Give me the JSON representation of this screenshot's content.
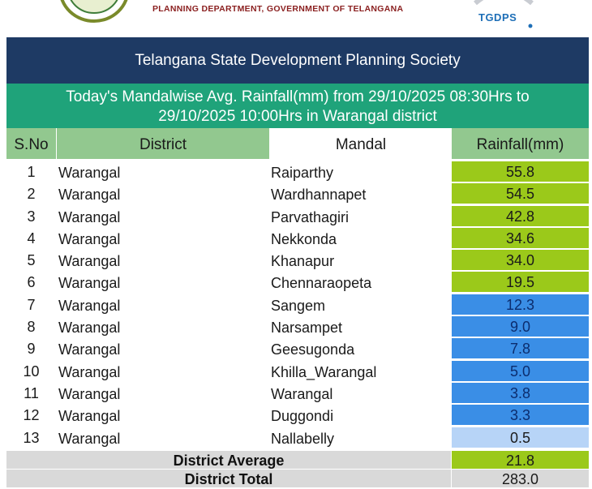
{
  "header": {
    "department": "PLANNING DEPARTMENT, GOVERNMENT OF TELANGANA",
    "logo_text": "TGDPS"
  },
  "title": "Telangana State Development Planning Society",
  "subtitle_line1": "Today's Mandalwise Avg. Rainfall(mm) from 29/10/2025 08:30Hrs to",
  "subtitle_line2": "29/10/2025 10:00Hrs in Warangal district",
  "columns": {
    "sno": "S.No",
    "district": "District",
    "mandal": "Mandal",
    "rainfall": "Rainfall(mm)"
  },
  "rows": [
    {
      "sno": "1",
      "district": "Warangal",
      "mandal": "Raiparthy",
      "rainfall": "55.8"
    },
    {
      "sno": "2",
      "district": "Warangal",
      "mandal": "Wardhannapet",
      "rainfall": "54.5"
    },
    {
      "sno": "3",
      "district": "Warangal",
      "mandal": "Parvathagiri",
      "rainfall": "42.8"
    },
    {
      "sno": "4",
      "district": "Warangal",
      "mandal": "Nekkonda",
      "rainfall": "34.6"
    },
    {
      "sno": "5",
      "district": "Warangal",
      "mandal": "Khanapur",
      "rainfall": "34.0"
    },
    {
      "sno": "6",
      "district": "Warangal",
      "mandal": "Chennaraopeta",
      "rainfall": "19.5"
    },
    {
      "sno": "7",
      "district": "Warangal",
      "mandal": "Sangem",
      "rainfall": "12.3"
    },
    {
      "sno": "8",
      "district": "Warangal",
      "mandal": "Narsampet",
      "rainfall": "9.0"
    },
    {
      "sno": "9",
      "district": "Warangal",
      "mandal": "Geesugonda",
      "rainfall": "7.8"
    },
    {
      "sno": "10",
      "district": "Warangal",
      "mandal": "Khilla_Warangal",
      "rainfall": "5.0"
    },
    {
      "sno": "11",
      "district": "Warangal",
      "mandal": "Warangal",
      "rainfall": "3.8"
    },
    {
      "sno": "12",
      "district": "Warangal",
      "mandal": "Duggondi",
      "rainfall": "3.3"
    },
    {
      "sno": "13",
      "district": "Warangal",
      "mandal": "Nallabelly",
      "rainfall": "0.5"
    }
  ],
  "summary": {
    "average_label": "District Average",
    "average_value": "21.8",
    "total_label": "District Total",
    "total_value": "283.0"
  },
  "colors": {
    "title_bg": "#1e3a64",
    "subtitle_bg": "#1fa37a",
    "header_bg": "#92c88f",
    "high_rain": "#9bc91a",
    "mid_rain": "#3a8ee6",
    "low_rain": "#b7d4f7"
  }
}
